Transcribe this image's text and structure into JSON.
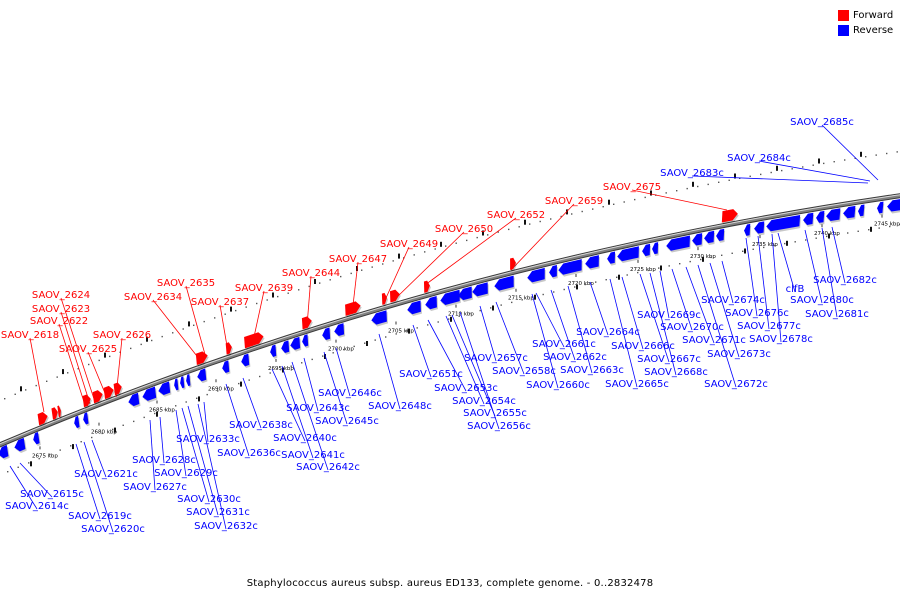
{
  "legend": {
    "forward_label": "Forward",
    "reverse_label": "Reverse",
    "forward_color": "#ff0000",
    "reverse_color": "#0000ff"
  },
  "caption": "Staphylococcus aureus subsp. aureus ED133, complete genome. - 0..2832478",
  "backbone_color": "#808080",
  "scale_ticks": [
    "2675 kbp",
    "2680 kbp",
    "2685 kbp",
    "2690 kbp",
    "2695 kbp",
    "2700 kbp",
    "2705 kbp",
    "2710 kbp",
    "2715 kbp",
    "2720 kbp",
    "2725 kbp",
    "2730 kbp",
    "2735 kbp",
    "2740 kbp",
    "2745 kbp"
  ],
  "forward_genes": [
    "SAOV_2618",
    "SAOV_2622",
    "SAOV_2623",
    "SAOV_2624",
    "SAOV_2625",
    "SAOV_2626",
    "SAOV_2634",
    "SAOV_2635",
    "SAOV_2637",
    "SAOV_2639",
    "SAOV_2644",
    "SAOV_2647",
    "SAOV_2649",
    "SAOV_2650",
    "SAOV_2652",
    "SAOV_2659",
    "SAOV_2675"
  ],
  "reverse_genes": [
    "SAOV_2614c",
    "SAOV_2615c",
    "SAOV_2619c",
    "SAOV_2620c",
    "SAOV_2621c",
    "SAOV_2627c",
    "SAOV_2628c",
    "SAOV_2629c",
    "SAOV_2630c",
    "SAOV_2631c",
    "SAOV_2632c",
    "SAOV_2633c",
    "SAOV_2636c",
    "SAOV_2638c",
    "SAOV_2640c",
    "SAOV_2641c",
    "SAOV_2642c",
    "SAOV_2643c",
    "SAOV_2645c",
    "SAOV_2646c",
    "SAOV_2648c",
    "SAOV_2651c",
    "SAOV_2653c",
    "SAOV_2654c",
    "SAOV_2655c",
    "SAOV_2656c",
    "SAOV_2657c",
    "SAOV_2658c",
    "SAOV_2660c",
    "SAOV_2661c",
    "SAOV_2662c",
    "SAOV_2663c",
    "SAOV_2664c",
    "SAOV_2665c",
    "SAOV_2666c",
    "SAOV_2667c",
    "SAOV_2668c",
    "SAOV_2669c",
    "SAOV_2670c",
    "SAOV_2671c",
    "SAOV_2672c",
    "SAOV_2673c",
    "SAOV_2674c",
    "SAOV_2676c",
    "SAOV_2677c",
    "SAOV_2678c",
    "clfB",
    "SAOV_2680c",
    "SAOV_2681c",
    "SAOV_2682c",
    "SAOV_2683c",
    "SAOV_2684c",
    "SAOV_2685c"
  ]
}
